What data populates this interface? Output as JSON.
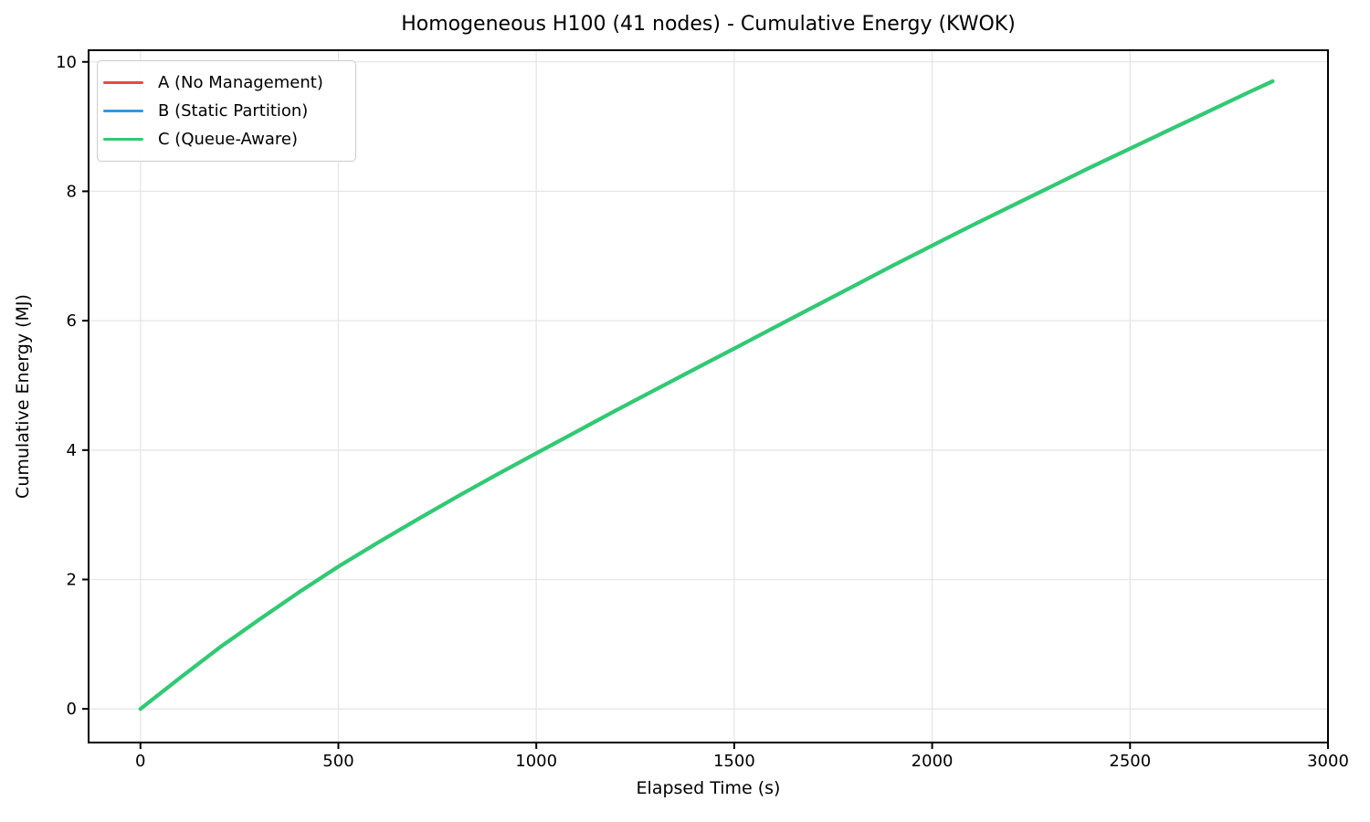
{
  "chart_data": {
    "type": "line",
    "title": "Homogeneous H100 (41 nodes) - Cumulative Energy (KWOK)",
    "xlabel": "Elapsed Time (s)",
    "ylabel": "Cumulative Energy (MJ)",
    "xlim": [
      -131,
      3000
    ],
    "ylim": [
      -0.52,
      10.18
    ],
    "xticks": [
      0,
      500,
      1000,
      1500,
      2000,
      2500,
      3000
    ],
    "yticks": [
      0,
      2,
      4,
      6,
      8,
      10
    ],
    "grid": true,
    "grid_color": "#e6e6e6",
    "legend_position": "upper-left",
    "x": [
      0,
      100,
      200,
      300,
      400,
      500,
      600,
      700,
      800,
      900,
      1000,
      1100,
      1200,
      1300,
      1400,
      1500,
      1600,
      1700,
      1800,
      1900,
      2000,
      2100,
      2200,
      2300,
      2400,
      2500,
      2600,
      2700,
      2800,
      2860
    ],
    "series": [
      {
        "name": "A (No Management)",
        "color": "#e74c3c",
        "values": [
          0,
          0.48,
          0.95,
          1.38,
          1.8,
          2.2,
          2.57,
          2.93,
          3.28,
          3.62,
          3.95,
          4.28,
          4.61,
          4.93,
          5.25,
          5.57,
          5.89,
          6.21,
          6.53,
          6.85,
          7.16,
          7.47,
          7.77,
          8.07,
          8.37,
          8.66,
          8.95,
          9.24,
          9.53,
          9.7
        ]
      },
      {
        "name": "B (Static Partition)",
        "color": "#3498db",
        "values": [
          0,
          0.48,
          0.95,
          1.38,
          1.8,
          2.2,
          2.57,
          2.93,
          3.28,
          3.62,
          3.95,
          4.28,
          4.61,
          4.93,
          5.25,
          5.57,
          5.89,
          6.21,
          6.53,
          6.85,
          7.16,
          7.47,
          7.77,
          8.07,
          8.37,
          8.66,
          8.95,
          9.24,
          9.53,
          9.7
        ]
      },
      {
        "name": "C (Queue-Aware)",
        "color": "#2ecc71",
        "values": [
          0,
          0.48,
          0.95,
          1.38,
          1.8,
          2.2,
          2.57,
          2.93,
          3.28,
          3.62,
          3.95,
          4.28,
          4.61,
          4.93,
          5.25,
          5.57,
          5.89,
          6.21,
          6.53,
          6.85,
          7.16,
          7.47,
          7.77,
          8.07,
          8.37,
          8.66,
          8.95,
          9.24,
          9.53,
          9.7
        ]
      }
    ]
  }
}
